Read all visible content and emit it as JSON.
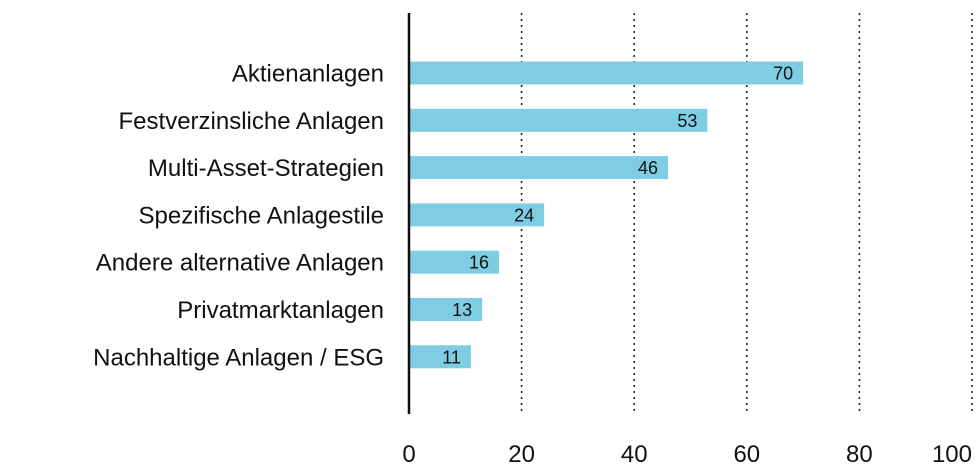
{
  "chart_data": {
    "type": "bar",
    "orientation": "horizontal",
    "categories": [
      "Aktienanlagen",
      "Festverzinsliche Anlagen",
      "Multi-Asset-Strategien",
      "Spezifische Anlagestile",
      "Andere alternative Anlagen",
      "Privatmarktanlagen",
      "Nachhaltige Anlagen / ESG"
    ],
    "values": [
      70,
      53,
      46,
      24,
      16,
      13,
      11
    ],
    "xlim": [
      0,
      100
    ],
    "xticks": [
      0,
      20,
      40,
      60,
      80,
      100
    ],
    "title": "",
    "xlabel": "",
    "ylabel": "",
    "bar_color": "#7ecde3",
    "grid": "vertical-dotted",
    "legend": "none"
  }
}
